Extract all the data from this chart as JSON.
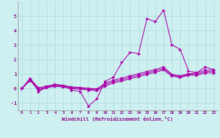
{
  "xlabel": "Windchill (Refroidissement éolien,°C)",
  "ylabel": "",
  "background_color": "#cff0f0",
  "grid_color": "#aadddd",
  "line_color": "#aa00aa",
  "xlim": [
    -0.5,
    23.5
  ],
  "ylim": [
    -1.5,
    6.0
  ],
  "xticks": [
    0,
    1,
    2,
    3,
    4,
    5,
    6,
    7,
    8,
    9,
    10,
    11,
    12,
    13,
    14,
    15,
    16,
    17,
    18,
    19,
    20,
    21,
    22,
    23
  ],
  "yticks": [
    -1,
    0,
    1,
    2,
    3,
    4,
    5
  ],
  "series": [
    {
      "x": [
        0,
        1,
        2,
        3,
        4,
        5,
        6,
        7,
        8,
        9,
        10,
        11,
        12,
        13,
        14,
        15,
        16,
        17,
        18,
        19,
        20,
        21,
        22,
        23
      ],
      "y": [
        0.0,
        0.7,
        -0.2,
        0.1,
        0.3,
        0.2,
        -0.1,
        -0.2,
        -1.2,
        -0.7,
        0.5,
        0.8,
        1.8,
        2.5,
        2.4,
        4.8,
        4.6,
        5.4,
        3.0,
        2.7,
        1.2,
        1.1,
        1.5,
        1.3
      ]
    },
    {
      "x": [
        0,
        1,
        2,
        3,
        4,
        5,
        6,
        7,
        8,
        9,
        10,
        11,
        12,
        13,
        14,
        15,
        16,
        17,
        18,
        19,
        20,
        21,
        22,
        23
      ],
      "y": [
        0.0,
        0.7,
        0.05,
        0.18,
        0.28,
        0.22,
        0.12,
        0.08,
        0.02,
        -0.02,
        0.38,
        0.58,
        0.72,
        0.88,
        1.02,
        1.18,
        1.32,
        1.48,
        0.98,
        0.88,
        1.02,
        1.08,
        1.28,
        1.28
      ]
    },
    {
      "x": [
        0,
        1,
        2,
        3,
        4,
        5,
        6,
        7,
        8,
        9,
        10,
        11,
        12,
        13,
        14,
        15,
        16,
        17,
        18,
        19,
        20,
        21,
        22,
        23
      ],
      "y": [
        0.0,
        0.62,
        -0.02,
        0.12,
        0.22,
        0.16,
        0.06,
        0.02,
        -0.04,
        -0.08,
        0.28,
        0.48,
        0.62,
        0.78,
        0.92,
        1.08,
        1.22,
        1.38,
        0.92,
        0.82,
        0.98,
        0.98,
        1.18,
        1.18
      ]
    },
    {
      "x": [
        0,
        1,
        2,
        3,
        4,
        5,
        6,
        7,
        8,
        9,
        10,
        11,
        12,
        13,
        14,
        15,
        16,
        17,
        18,
        19,
        20,
        21,
        22,
        23
      ],
      "y": [
        0.0,
        0.55,
        -0.08,
        0.06,
        0.16,
        0.1,
        0.0,
        -0.04,
        -0.1,
        -0.14,
        0.18,
        0.38,
        0.52,
        0.68,
        0.82,
        0.98,
        1.12,
        1.28,
        0.86,
        0.76,
        0.92,
        0.92,
        1.08,
        1.08
      ]
    }
  ]
}
